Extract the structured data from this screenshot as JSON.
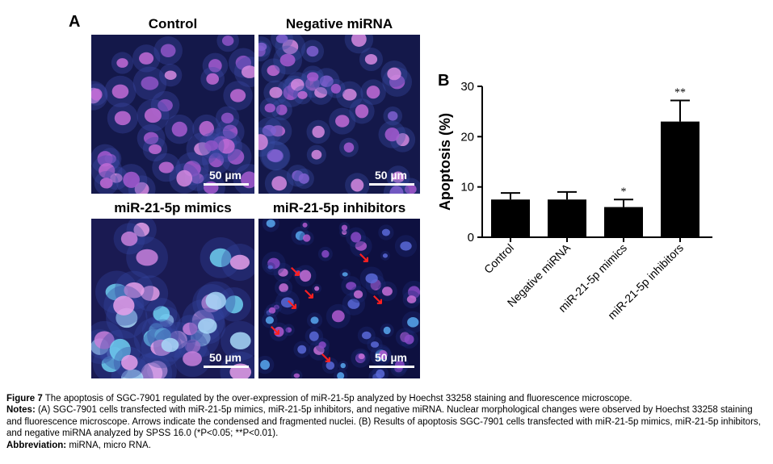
{
  "panel_a": {
    "letter": "A",
    "images": [
      {
        "title": "Control",
        "scale": "50 µm"
      },
      {
        "title": "Negative miRNA",
        "scale": "50 µm"
      },
      {
        "title": "miR-21-5p mimics",
        "scale": "50 µm"
      },
      {
        "title": "miR-21-5p inhibitors",
        "scale": "50 µm"
      }
    ]
  },
  "panel_b": {
    "letter": "B"
  },
  "chart_data": {
    "type": "bar",
    "categories": [
      "Control",
      "Negative miRNA",
      "miR-21-5p mimics",
      "miR-21-5p inhibitors"
    ],
    "values": [
      7.5,
      7.5,
      6.0,
      23.0
    ],
    "errors": [
      1.3,
      1.5,
      1.5,
      4.2
    ],
    "significance": [
      "",
      "",
      "*",
      "**"
    ],
    "ylabel": "Apoptosis (%)",
    "ylim": [
      0,
      30
    ],
    "yticks": [
      0,
      10,
      20,
      30
    ],
    "bar_color": "#000000"
  },
  "caption": {
    "fig_label": "Figure 7",
    "fig_title": " The apoptosis of SGC-7901 regulated by the over-expression of miR-21-5p analyzed by Hoechst 33258 staining and fluorescence microscope.",
    "notes_label": "Notes:",
    "notes_text": " (A) SGC-7901 cells transfected with miR-21-5p mimics, miR-21-5p inhibitors, and negative miRNA. Nuclear morphological changes were observed by Hoechst 33258 staining and fluorescence microscope. Arrows indicate the condensed and fragmented nuclei. (B) Results of apoptosis SGC-7901 cells transfected with miR-21-5p mimics, miR-21-5p inhibitors, and negative miRNA analyzed by SPSS 16.0 (*P<0.05; **P<0.01).",
    "abbrev_label": "Abbreviation:",
    "abbrev_text": " miRNA, micro RNA."
  }
}
